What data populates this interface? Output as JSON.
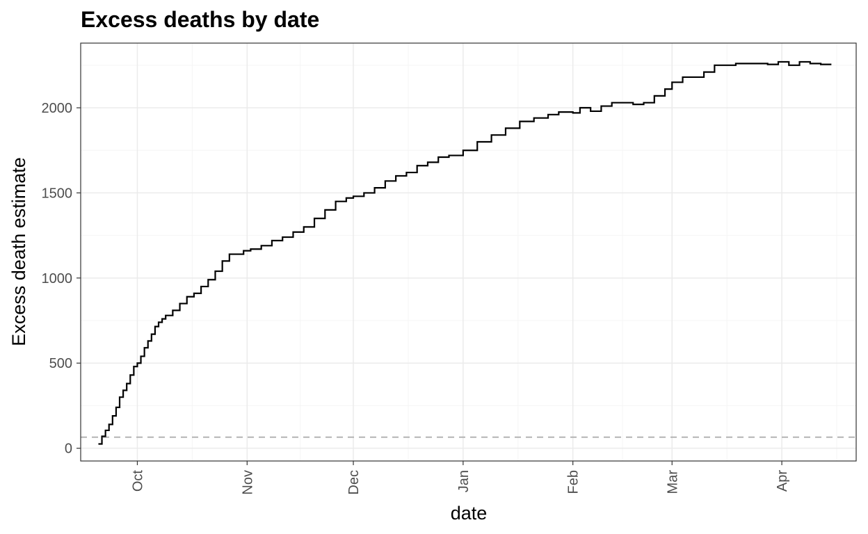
{
  "chart_data": {
    "type": "line",
    "line_style": "step",
    "title": "Excess deaths by date",
    "xlabel": "date",
    "ylabel": "Excess death estimate",
    "x_tick_labels": [
      "Oct",
      "Nov",
      "Dec",
      "Jan",
      "Feb",
      "Mar",
      "Apr"
    ],
    "x_tick_dates": [
      "2020-10-01",
      "2020-11-01",
      "2020-12-01",
      "2021-01-01",
      "2021-02-01",
      "2021-03-01",
      "2021-04-01"
    ],
    "xlim": [
      "2020-09-15",
      "2021-04-22"
    ],
    "y_ticks": [
      0,
      500,
      1000,
      1500,
      2000
    ],
    "y_tick_labels": [
      "0",
      "500",
      "1000",
      "1500",
      "2000"
    ],
    "ylim": [
      -75,
      2380
    ],
    "reference_line": {
      "y": 65,
      "style": "dashed",
      "color": "#b3b3b3"
    },
    "grid": true,
    "theme": "bw",
    "colors": {
      "line": "#000000",
      "grid_major": "#ebebeb",
      "grid_minor": "#f5f5f5",
      "panel_border": "#333333",
      "reference_line": "#b3b3b3",
      "tick_label": "#4d4d4d"
    },
    "series": [
      {
        "x": [
          "2020-09-20",
          "2020-09-21",
          "2020-09-22",
          "2020-09-23",
          "2020-09-24",
          "2020-09-25",
          "2020-09-26",
          "2020-09-27",
          "2020-09-28",
          "2020-09-29",
          "2020-09-30",
          "2020-10-01",
          "2020-10-02",
          "2020-10-03",
          "2020-10-04",
          "2020-10-05",
          "2020-10-06",
          "2020-10-07",
          "2020-10-08",
          "2020-10-09",
          "2020-10-11",
          "2020-10-13",
          "2020-10-15",
          "2020-10-17",
          "2020-10-19",
          "2020-10-21",
          "2020-10-23",
          "2020-10-25",
          "2020-10-27",
          "2020-10-29",
          "2020-10-31",
          "2020-11-02",
          "2020-11-05",
          "2020-11-08",
          "2020-11-11",
          "2020-11-14",
          "2020-11-17",
          "2020-11-20",
          "2020-11-23",
          "2020-11-26",
          "2020-11-29",
          "2020-12-01",
          "2020-12-04",
          "2020-12-07",
          "2020-12-10",
          "2020-12-13",
          "2020-12-16",
          "2020-12-19",
          "2020-12-22",
          "2020-12-25",
          "2020-12-28",
          "2021-01-01",
          "2021-01-05",
          "2021-01-09",
          "2021-01-13",
          "2021-01-17",
          "2021-01-21",
          "2021-01-25",
          "2021-01-28",
          "2021-02-01",
          "2021-02-03",
          "2021-02-06",
          "2021-02-09",
          "2021-02-12",
          "2021-02-15",
          "2021-02-18",
          "2021-02-21",
          "2021-02-24",
          "2021-02-27",
          "2021-03-01",
          "2021-03-04",
          "2021-03-07",
          "2021-03-10",
          "2021-03-13",
          "2021-03-16",
          "2021-03-19",
          "2021-03-22",
          "2021-03-25",
          "2021-03-28",
          "2021-03-31",
          "2021-04-03",
          "2021-04-06",
          "2021-04-09",
          "2021-04-12"
        ],
        "values": [
          25,
          70,
          105,
          140,
          190,
          240,
          300,
          340,
          380,
          430,
          480,
          500,
          540,
          590,
          630,
          670,
          715,
          740,
          760,
          780,
          810,
          850,
          890,
          910,
          950,
          990,
          1040,
          1100,
          1140,
          1140,
          1160,
          1170,
          1190,
          1220,
          1240,
          1270,
          1300,
          1350,
          1400,
          1450,
          1470,
          1480,
          1500,
          1530,
          1570,
          1600,
          1620,
          1660,
          1680,
          1710,
          1720,
          1750,
          1800,
          1840,
          1880,
          1920,
          1940,
          1960,
          1975,
          1970,
          2000,
          1980,
          2010,
          2030,
          2030,
          2020,
          2030,
          2070,
          2110,
          2150,
          2180,
          2180,
          2210,
          2250,
          2250,
          2260,
          2260,
          2260,
          2255,
          2270,
          2250,
          2270,
          2260,
          2255
        ]
      }
    ]
  }
}
